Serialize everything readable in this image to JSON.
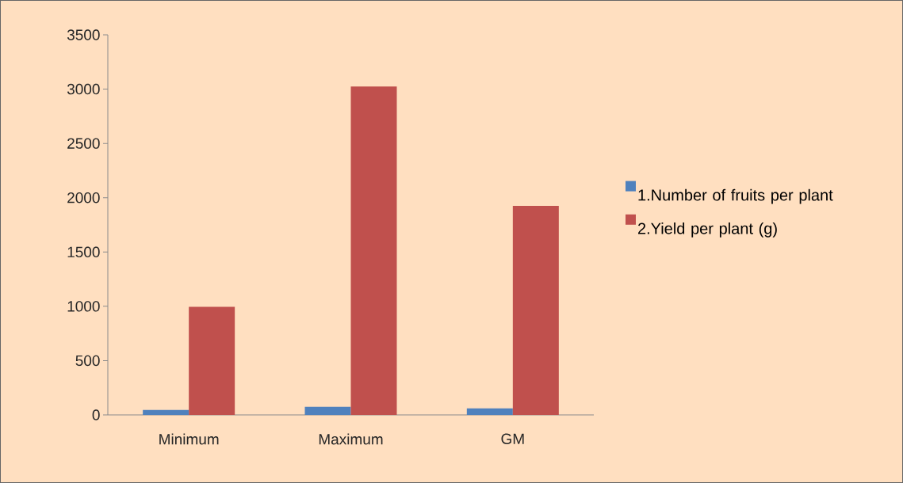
{
  "chart_data": {
    "type": "bar",
    "categories": [
      "Minimum",
      "Maximum",
      "GM"
    ],
    "series": [
      {
        "name": "1.Number of fruits per plant",
        "color": "#4f81bd",
        "values": [
          45,
          75,
          60
        ]
      },
      {
        "name": "2.Yield per plant (g)",
        "color": "#c0504d",
        "values": [
          995,
          3025,
          1925
        ]
      }
    ],
    "ylim": [
      0,
      3500
    ],
    "yticks": [
      0,
      500,
      1000,
      1500,
      2000,
      2500,
      3000,
      3500
    ],
    "grid": false,
    "legend": "right"
  }
}
